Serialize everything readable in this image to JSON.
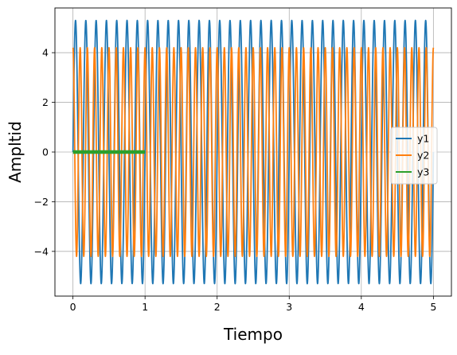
{
  "chart_data": {
    "type": "line",
    "title": "",
    "xlabel": "Tiempo",
    "ylabel": "Ampltid",
    "xlim": [
      -0.25,
      5.25
    ],
    "ylim": [
      -5.8,
      5.8
    ],
    "xticks": [
      0,
      1,
      2,
      3,
      4,
      5
    ],
    "xtick_labels": [
      "0",
      "1",
      "2",
      "3",
      "4",
      "5"
    ],
    "yticks": [
      -4,
      -2,
      0,
      2,
      4
    ],
    "ytick_labels": [
      "−4",
      "−2",
      "0",
      "2",
      "4"
    ],
    "grid": true,
    "legend_position": "center-right",
    "series": [
      {
        "name": "y1",
        "color": "#1f77b4",
        "x_range": [
          0,
          5
        ],
        "amplitude": 5.3,
        "frequency_hz": 7,
        "phase": "sine",
        "offset": 0
      },
      {
        "name": "y2",
        "color": "#ff7f0e",
        "x_range": [
          0,
          5
        ],
        "amplitude": 4.2,
        "frequency_hz": 10,
        "phase": "cosine",
        "offset": 0
      },
      {
        "name": "y3",
        "color": "#2ca02c",
        "x_range": [
          0,
          1
        ],
        "amplitude": 0,
        "frequency_hz": 0,
        "phase": "constant",
        "offset": 0
      }
    ]
  }
}
